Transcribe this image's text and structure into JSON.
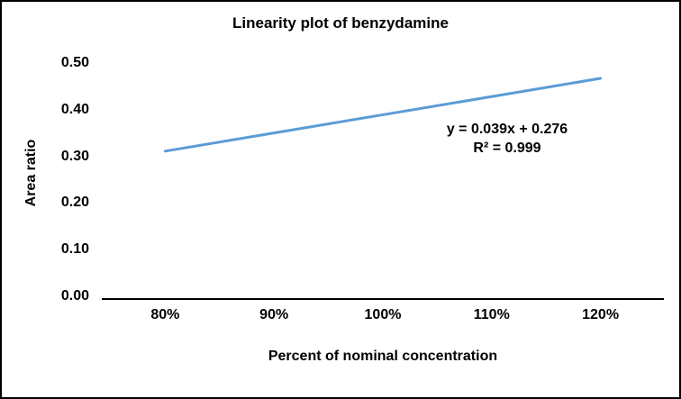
{
  "window": {
    "background": "#ffffff",
    "border_color": "#000000"
  },
  "chart_data": {
    "type": "line",
    "title": "Linearity plot of benzydamine",
    "xlabel": "Percent of nominal concentration",
    "ylabel": "Area ratio",
    "categories": [
      "80%",
      "90%",
      "100%",
      "110%",
      "120%"
    ],
    "series": [
      {
        "name": "Area ratio",
        "values": [
          0.315,
          0.354,
          0.393,
          0.432,
          0.471
        ],
        "color": "#5B9BD5"
      }
    ],
    "ylim": [
      0,
      0.5
    ],
    "ytick_step": 0.1,
    "ytick_labels": [
      "0.00",
      "0.10",
      "0.20",
      "0.30",
      "0.40",
      "0.50"
    ],
    "grid": false,
    "legend": "none",
    "annotation": {
      "line1": "y = 0.039x + 0.276",
      "line2": "R² = 0.999"
    }
  }
}
